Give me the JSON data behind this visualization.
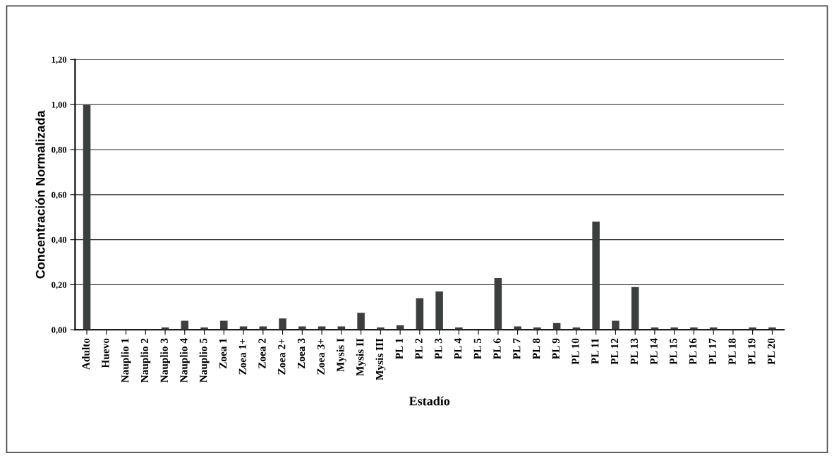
{
  "chart_data": {
    "type": "bar",
    "xlabel": "Estadío",
    "ylabel": "Concentración Normalizada",
    "categories": [
      "Adulto",
      "Huevo",
      "Nauplio 1",
      "Nauplio 2",
      "Nauplio 3",
      "Nauplio 4",
      "Nauplio 5",
      "Zoea 1",
      "Zoea 1+",
      "Zoea 2",
      "Zoea 2+",
      "Zoea 3",
      "Zoea 3+",
      "Mysis I",
      "Mysis II",
      "Mysis III",
      "PL 1",
      "PL 2",
      "PL 3",
      "PL 4",
      "PL 5",
      "PL 6",
      "PL 7",
      "PL 8",
      "PL 9",
      "PL 10",
      "PL 11",
      "PL 12",
      "PL 13",
      "PL 14",
      "PL 15",
      "PL 16",
      "PL 17",
      "PL 18",
      "PL 19",
      "PL 20"
    ],
    "values": [
      1.0,
      0.0,
      0.0,
      0.0,
      0.01,
      0.04,
      0.01,
      0.04,
      0.015,
      0.015,
      0.05,
      0.015,
      0.015,
      0.015,
      0.075,
      0.01,
      0.02,
      0.14,
      0.17,
      0.01,
      0.0,
      0.23,
      0.015,
      0.01,
      0.03,
      0.01,
      0.48,
      0.04,
      0.19,
      0.01,
      0.01,
      0.01,
      0.01,
      0.0,
      0.01,
      0.01
    ],
    "color": "#3b403f",
    "ylim": [
      0,
      1.2
    ],
    "yticks": [
      {
        "value": 0,
        "label": "0,00"
      },
      {
        "value": 0.2,
        "label": "0,20"
      },
      {
        "value": 0.4,
        "label": "0,40"
      },
      {
        "value": 0.6,
        "label": "0,60"
      },
      {
        "value": 0.8,
        "label": "0,80"
      },
      {
        "value": 1.0,
        "label": "1,00"
      },
      {
        "value": 1.2,
        "label": "1,20"
      }
    ],
    "grid": "y",
    "legend": false
  }
}
